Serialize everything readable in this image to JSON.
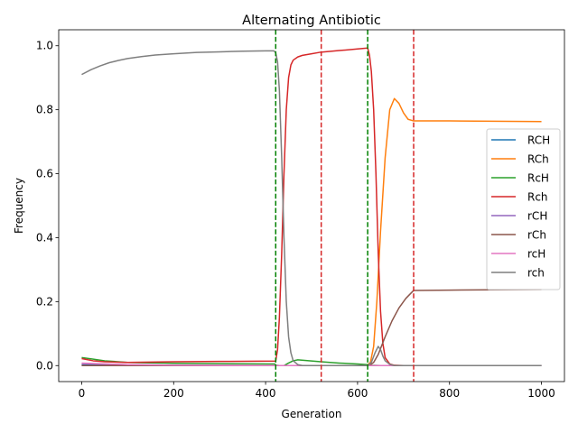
{
  "chart_data": {
    "type": "line",
    "title": "Alternating Antibiotic",
    "xlabel": "Generation",
    "ylabel": "Frequency",
    "xlim": [
      -50,
      1050
    ],
    "ylim": [
      -0.05,
      1.05
    ],
    "xticks": [
      0,
      200,
      400,
      600,
      800,
      1000
    ],
    "yticks": [
      0.0,
      0.2,
      0.4,
      0.6,
      0.8,
      1.0
    ],
    "xtick_labels": [
      "0",
      "200",
      "400",
      "600",
      "800",
      "1000"
    ],
    "ytick_labels": [
      "0.0",
      "0.2",
      "0.4",
      "0.6",
      "0.8",
      "1.0"
    ],
    "grid": false,
    "legend_position": "right",
    "series": [
      {
        "name": "RCH",
        "color": "#1f77b4",
        "x": [
          0,
          100,
          200,
          400,
          1000
        ],
        "y": [
          0.002,
          0.001,
          0.0,
          0.0,
          0.0
        ]
      },
      {
        "name": "RCh",
        "color": "#ff7f0e",
        "x": [
          0,
          400,
          620,
          628,
          635,
          642,
          650,
          660,
          670,
          680,
          690,
          700,
          710,
          722,
          800,
          1000
        ],
        "y": [
          0.0,
          0.0,
          0.0,
          0.01,
          0.06,
          0.2,
          0.42,
          0.65,
          0.8,
          0.835,
          0.82,
          0.79,
          0.77,
          0.765,
          0.765,
          0.763
        ]
      },
      {
        "name": "RcH",
        "color": "#2ca02c",
        "x": [
          0,
          25,
          50,
          100,
          200,
          300,
          420,
          423,
          430,
          440,
          450,
          460,
          470,
          520,
          560,
          600,
          622,
          630,
          650,
          720,
          1000
        ],
        "y": [
          0.025,
          0.02,
          0.015,
          0.01,
          0.007,
          0.006,
          0.005,
          0.001,
          0.0,
          0.0,
          0.008,
          0.015,
          0.018,
          0.012,
          0.008,
          0.005,
          0.003,
          0.001,
          0.0,
          0.0,
          0.0
        ]
      },
      {
        "name": "Rch",
        "color": "#d62728",
        "x": [
          0,
          25,
          50,
          100,
          200,
          300,
          422,
          426,
          430,
          435,
          440,
          445,
          450,
          455,
          460,
          470,
          480,
          500,
          520,
          560,
          600,
          622,
          626,
          630,
          635,
          640,
          645,
          650,
          655,
          660,
          670,
          680,
          700,
          722,
          1000
        ],
        "y": [
          0.022,
          0.015,
          0.012,
          0.01,
          0.012,
          0.013,
          0.014,
          0.05,
          0.15,
          0.35,
          0.6,
          0.8,
          0.9,
          0.94,
          0.955,
          0.965,
          0.97,
          0.975,
          0.98,
          0.985,
          0.99,
          0.993,
          0.97,
          0.92,
          0.8,
          0.6,
          0.35,
          0.17,
          0.07,
          0.025,
          0.005,
          0.001,
          0.0,
          0.0,
          0.0
        ]
      },
      {
        "name": "rCH",
        "color": "#9467bd",
        "x": [
          0,
          100,
          200,
          400,
          1000
        ],
        "y": [
          0.006,
          0.003,
          0.001,
          0.0,
          0.0
        ]
      },
      {
        "name": "rCh",
        "color": "#8c564b",
        "x": [
          0,
          300,
          622,
          628,
          635,
          645,
          660,
          675,
          690,
          705,
          722,
          800,
          1000
        ],
        "y": [
          0.0,
          0.0,
          0.0,
          0.003,
          0.01,
          0.035,
          0.09,
          0.14,
          0.18,
          0.21,
          0.235,
          0.236,
          0.238
        ]
      },
      {
        "name": "rcH",
        "color": "#e377c2",
        "x": [
          0,
          100,
          200,
          420,
          1000
        ],
        "y": [
          0.008,
          0.003,
          0.001,
          0.0,
          0.0
        ]
      },
      {
        "name": "rch",
        "color": "#7f7f7f",
        "x": [
          0,
          20,
          40,
          60,
          80,
          100,
          130,
          160,
          200,
          250,
          300,
          350,
          400,
          418,
          422,
          426,
          430,
          435,
          440,
          445,
          450,
          455,
          460,
          470,
          480,
          520,
          600,
          622,
          630,
          638,
          645,
          650,
          655,
          660,
          670,
          680,
          720,
          1000
        ],
        "y": [
          0.91,
          0.925,
          0.937,
          0.947,
          0.954,
          0.96,
          0.966,
          0.971,
          0.975,
          0.979,
          0.981,
          0.983,
          0.984,
          0.984,
          0.978,
          0.95,
          0.86,
          0.65,
          0.4,
          0.2,
          0.09,
          0.04,
          0.015,
          0.003,
          0.0,
          0.0,
          0.0,
          0.0,
          0.01,
          0.04,
          0.06,
          0.05,
          0.03,
          0.015,
          0.004,
          0.0,
          0.0,
          0.0
        ]
      }
    ],
    "vlines": [
      {
        "x": 422,
        "color": "#008000",
        "style": "dashed"
      },
      {
        "x": 521,
        "color": "#d62728",
        "style": "dashed"
      },
      {
        "x": 622,
        "color": "#008000",
        "style": "dashed"
      },
      {
        "x": 722,
        "color": "#d62728",
        "style": "dashed"
      }
    ]
  }
}
